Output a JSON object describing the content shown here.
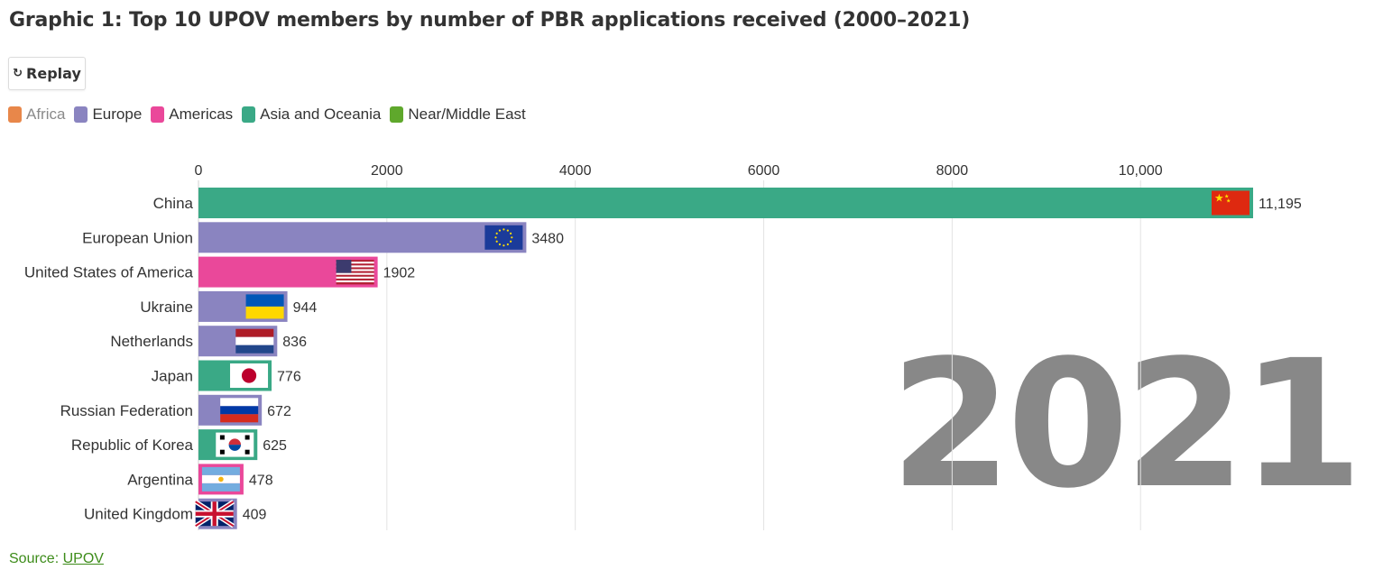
{
  "title": "Graphic 1: Top 10 UPOV members by number of PBR applications received (2000–2021)",
  "replay_label": "Replay",
  "replay_icon": "replay-icon",
  "legend": [
    {
      "label": "Africa",
      "color": "#e8874a",
      "dim": true
    },
    {
      "label": "Europe",
      "color": "#8a84c0",
      "dim": false
    },
    {
      "label": "Americas",
      "color": "#ea489a",
      "dim": false
    },
    {
      "label": "Asia and Oceania",
      "color": "#3aa986",
      "dim": false
    },
    {
      "label": "Near/Middle East",
      "color": "#5fa82c",
      "dim": false
    }
  ],
  "source": {
    "prefix": "Source: ",
    "link_text": "UPOV"
  },
  "chart_data": {
    "type": "bar",
    "orientation": "horizontal",
    "year": "2021",
    "xlim": [
      0,
      11195
    ],
    "ticks": [
      0,
      2000,
      4000,
      6000,
      8000,
      10000
    ],
    "tick_labels": [
      "0",
      "2000",
      "4000",
      "6000",
      "8000",
      "10,000"
    ],
    "grid": true,
    "categories": [
      "China",
      "European Union",
      "United States of America",
      "Ukraine",
      "Netherlands",
      "Japan",
      "Russian Federation",
      "Republic of Korea",
      "Argentina",
      "United Kingdom"
    ],
    "values": [
      11195,
      3480,
      1902,
      944,
      836,
      776,
      672,
      625,
      478,
      409
    ],
    "value_labels": [
      "11,195",
      "3480",
      "1902",
      "944",
      "836",
      "776",
      "672",
      "625",
      "478",
      "409"
    ],
    "regions": [
      "Asia and Oceania",
      "Europe",
      "Americas",
      "Europe",
      "Europe",
      "Asia and Oceania",
      "Europe",
      "Asia and Oceania",
      "Americas",
      "Europe"
    ],
    "flags": [
      "china-flag-icon",
      "eu-flag-icon",
      "usa-flag-icon",
      "ukraine-flag-icon",
      "netherlands-flag-icon",
      "japan-flag-icon",
      "russia-flag-icon",
      "korea-flag-icon",
      "argentina-flag-icon",
      "uk-flag-icon"
    ]
  },
  "colors": {
    "Asia and Oceania": "#3aa986",
    "Europe": "#8a84c0",
    "Americas": "#ea489a",
    "Africa": "#e8874a",
    "Near/Middle East": "#5fa82c",
    "year_watermark": "#888888",
    "gridline": "#e3e3e3"
  }
}
